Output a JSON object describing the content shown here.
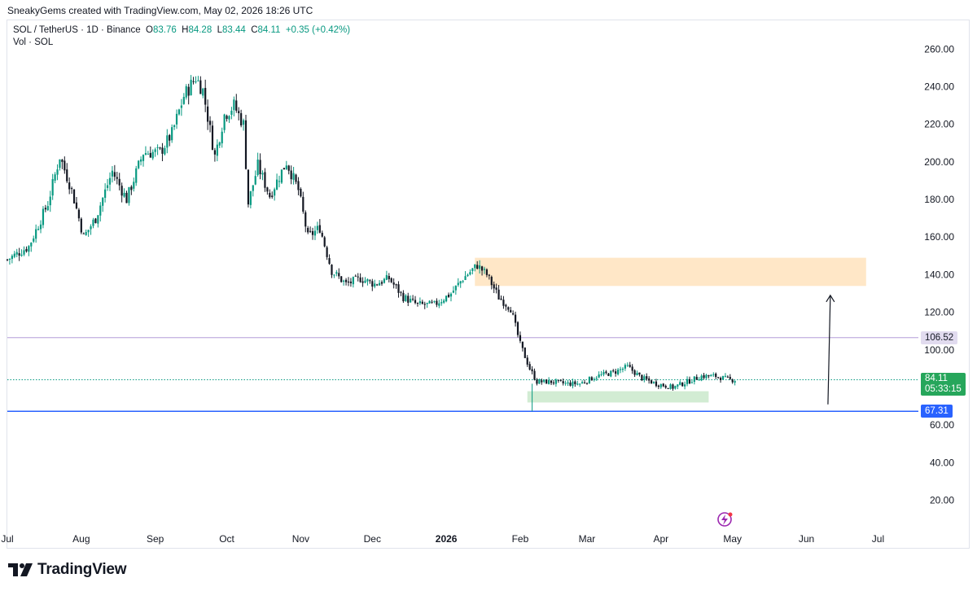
{
  "header": {
    "credit": "SneakyGems created with TradingView.com, May 02, 2026 18:26 UTC"
  },
  "legend": {
    "symbol": "SOL / TetherUS · 1D · Binance",
    "o_label": "O",
    "o": "83.76",
    "h_label": "H",
    "h": "84.28",
    "l_label": "L",
    "l": "83.44",
    "c_label": "C",
    "c": "84.11",
    "change": "+0.35 (+0.42%)",
    "volume": "Vol · SOL"
  },
  "price_tags": {
    "purple_level": "106.52",
    "last_price": "84.11",
    "countdown": "05:33:15",
    "blue_level": "67.31"
  },
  "brand": {
    "name": "TradingView"
  },
  "colors": {
    "up": "#089981",
    "down": "#131722",
    "accent_green": "#26a69a",
    "purple_line": "#c7b7e3",
    "blue_line": "#2962ff",
    "orange_zone": "#ffe7c7",
    "green_zone": "#d2ecd3"
  },
  "chart_data": {
    "type": "candlestick",
    "symbol": "SOL / TetherUS",
    "interval": "1D",
    "ylim": [
      5,
      270
    ],
    "y_ticks": [
      "260.00",
      "240.00",
      "220.00",
      "200.00",
      "180.00",
      "160.00",
      "140.00",
      "120.00",
      "100.00",
      "80.00",
      "60.00",
      "40.00",
      "20.00"
    ],
    "x_ticks": [
      "Jul",
      "Aug",
      "Sep",
      "Oct",
      "Nov",
      "Dec",
      "2026",
      "Feb",
      "Mar",
      "Apr",
      "May",
      "Jun",
      "Jul"
    ],
    "x_tick_dates": [
      "2025-07-01",
      "2025-08-01",
      "2025-09-01",
      "2025-10-01",
      "2025-11-01",
      "2025-12-01",
      "2026-01-01",
      "2026-02-01",
      "2026-03-01",
      "2026-04-01",
      "2026-05-01",
      "2026-06-01",
      "2026-07-01"
    ],
    "close_path": [
      [
        "2025-07-01",
        148
      ],
      [
        "2025-07-10",
        155
      ],
      [
        "2025-07-18",
        178
      ],
      [
        "2025-07-23",
        203
      ],
      [
        "2025-07-28",
        185
      ],
      [
        "2025-08-02",
        160
      ],
      [
        "2025-08-07",
        170
      ],
      [
        "2025-08-14",
        195
      ],
      [
        "2025-08-20",
        180
      ],
      [
        "2025-08-27",
        205
      ],
      [
        "2025-09-03",
        205
      ],
      [
        "2025-09-08",
        215
      ],
      [
        "2025-09-13",
        235
      ],
      [
        "2025-09-18",
        245
      ],
      [
        "2025-09-21",
        238
      ],
      [
        "2025-09-26",
        203
      ],
      [
        "2025-09-30",
        225
      ],
      [
        "2025-10-04",
        230
      ],
      [
        "2025-10-08",
        220
      ],
      [
        "2025-10-10",
        178
      ],
      [
        "2025-10-14",
        198
      ],
      [
        "2025-10-19",
        182
      ],
      [
        "2025-10-26",
        200
      ],
      [
        "2025-10-31",
        185
      ],
      [
        "2025-11-04",
        160
      ],
      [
        "2025-11-09",
        165
      ],
      [
        "2025-11-14",
        142
      ],
      [
        "2025-11-20",
        135
      ],
      [
        "2025-11-26",
        138
      ],
      [
        "2025-12-02",
        135
      ],
      [
        "2025-12-08",
        138
      ],
      [
        "2025-12-14",
        128
      ],
      [
        "2025-12-20",
        124
      ],
      [
        "2025-12-27",
        124
      ],
      [
        "2026-01-03",
        130
      ],
      [
        "2026-01-08",
        138
      ],
      [
        "2026-01-14",
        145
      ],
      [
        "2026-01-18",
        140
      ],
      [
        "2026-01-23",
        128
      ],
      [
        "2026-01-28",
        122
      ],
      [
        "2026-02-01",
        103
      ],
      [
        "2026-02-05",
        90
      ],
      [
        "2026-02-08",
        83
      ],
      [
        "2026-02-14",
        83
      ],
      [
        "2026-02-20",
        82
      ],
      [
        "2026-02-26",
        82
      ],
      [
        "2026-03-05",
        86
      ],
      [
        "2026-03-12",
        88
      ],
      [
        "2026-03-18",
        91
      ],
      [
        "2026-03-24",
        85
      ],
      [
        "2026-03-30",
        82
      ],
      [
        "2026-04-06",
        80
      ],
      [
        "2026-04-12",
        83
      ],
      [
        "2026-04-18",
        86
      ],
      [
        "2026-04-24",
        86
      ],
      [
        "2026-04-30",
        84
      ],
      [
        "2026-05-02",
        84.11
      ]
    ],
    "last_price": 84.11,
    "horizontal_lines": [
      {
        "price": 106.52,
        "color": "#c7b7e3"
      },
      {
        "price": 84.11,
        "color": "#089981",
        "style": "dotted"
      },
      {
        "price": 67.31,
        "color": "#2962ff"
      }
    ],
    "zones": [
      {
        "from": "2026-01-13",
        "to": "2026-06-26",
        "low": 134,
        "high": 149,
        "color": "#ffe7c7"
      },
      {
        "from": "2026-02-04",
        "to": "2026-04-21",
        "low": 72,
        "high": 78,
        "color": "#d2ecd3"
      }
    ],
    "arrow": {
      "from_date": "2026-06-10",
      "from_price": 71,
      "to_date": "2026-06-11",
      "to_price": 129
    }
  }
}
